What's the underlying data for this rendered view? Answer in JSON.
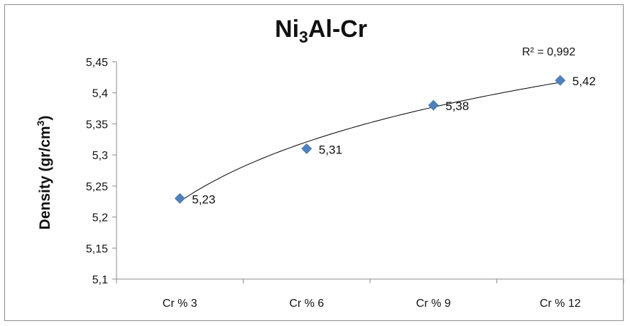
{
  "chart_data": {
    "type": "scatter",
    "title": {
      "base": "Ni",
      "sub": "3",
      "rest": "Al-Cr"
    },
    "ylabel": {
      "main": "Density (gr/cm",
      "sup": "3",
      "tail": ")"
    },
    "xlabel": "",
    "categories": [
      "Cr % 3",
      "Cr % 6",
      "Cr % 9",
      "Cr % 12"
    ],
    "values": [
      5.23,
      5.31,
      5.38,
      5.42
    ],
    "value_labels": [
      "5,23",
      "5,31",
      "5,38",
      "5,42"
    ],
    "ylim": [
      5.1,
      5.45
    ],
    "yticks": [
      5.1,
      5.15,
      5.2,
      5.25,
      5.3,
      5.35,
      5.4,
      5.45
    ],
    "ytick_labels": [
      "5,1",
      "5,15",
      "5,2",
      "5,25",
      "5,3",
      "5,35",
      "5,4",
      "5,45"
    ],
    "trendline": {
      "type": "logarithmic",
      "r2_label": "R² = 0,992"
    },
    "marker_color": "#4f81bd",
    "trendline_color": "#000000",
    "grid": false,
    "legend": "none"
  }
}
